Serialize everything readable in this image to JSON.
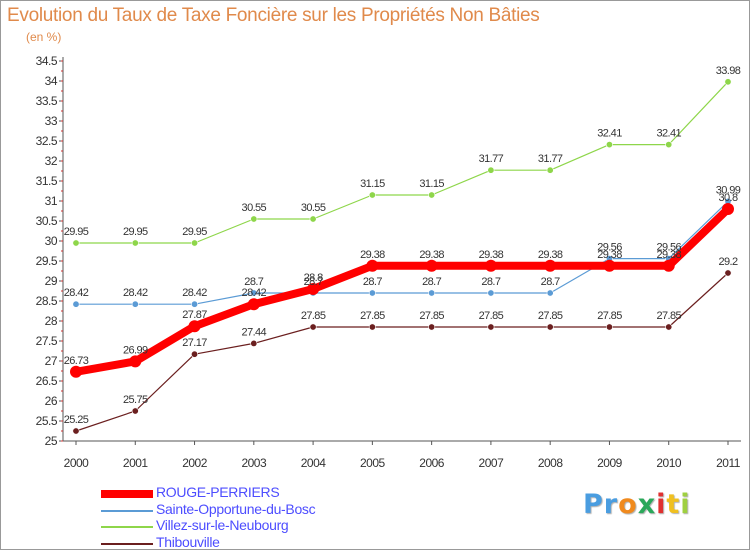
{
  "title": "Evolution du Taux de Taxe Foncière sur les Propriétés Non Bâties",
  "unit_label": "(en %)",
  "logo": {
    "letters": [
      "P",
      "r",
      "o",
      "x",
      "i",
      "t",
      "i"
    ],
    "colors": [
      "#4a9de0",
      "#4a9de0",
      "#f08a1e",
      "#2aa85a",
      "#e03030",
      "#f0c020",
      "#9fd040"
    ]
  },
  "chart_data": {
    "type": "line",
    "title": "Evolution du Taux de Taxe Foncière sur les Propriétés Non Bâties",
    "ylabel": "(en %)",
    "xlabel": "",
    "x": [
      "2000",
      "2001",
      "2002",
      "2003",
      "2004",
      "2005",
      "2006",
      "2007",
      "2008",
      "2009",
      "2010",
      "2011"
    ],
    "ylim": [
      25,
      34.5
    ],
    "yticks": [
      "25",
      "25.5",
      "26",
      "26.5",
      "27",
      "27.5",
      "28",
      "28.5",
      "29",
      "29.5",
      "30",
      "30.5",
      "31",
      "31.5",
      "32",
      "32.5",
      "33",
      "33.5",
      "34",
      "34.5"
    ],
    "grid": false,
    "legend": "bottom-left",
    "series": [
      {
        "name": "ROUGE-PERRIERS",
        "color": "#ff0000",
        "values": [
          26.73,
          26.99,
          27.87,
          28.42,
          28.8,
          29.38,
          29.38,
          29.38,
          29.38,
          29.38,
          29.38,
          30.8
        ],
        "labels": [
          "26.73",
          "26.99",
          "27.87",
          "28.42",
          "28.8",
          "29.38",
          "29.38",
          "29.38",
          "29.38",
          "29.38",
          "29.38",
          "30.8"
        ]
      },
      {
        "name": "Sainte-Opportune-du-Bosc",
        "color": "#5b9bd5",
        "values": [
          28.42,
          28.42,
          28.42,
          28.7,
          28.7,
          28.7,
          28.7,
          28.7,
          28.7,
          29.56,
          29.56,
          30.99
        ],
        "labels": [
          "28.42",
          "28.42",
          "28.42",
          "28.7",
          "28.7",
          "28.7",
          "28.7",
          "28.7",
          "28.7",
          "29.56",
          "29.56",
          "30.99"
        ]
      },
      {
        "name": "Villez-sur-le-Neubourg",
        "color": "#8ed64a",
        "values": [
          29.95,
          29.95,
          29.95,
          30.55,
          30.55,
          31.15,
          31.15,
          31.77,
          31.77,
          32.41,
          32.41,
          33.98
        ],
        "labels": [
          "29.95",
          "29.95",
          "29.95",
          "30.55",
          "30.55",
          "31.15",
          "31.15",
          "31.77",
          "31.77",
          "32.41",
          "32.41",
          "33.98"
        ]
      },
      {
        "name": "Thibouville",
        "color": "#6b1f1f",
        "values": [
          25.25,
          25.75,
          27.17,
          27.44,
          27.85,
          27.85,
          27.85,
          27.85,
          27.85,
          27.85,
          27.85,
          29.2
        ],
        "labels": [
          "25.25",
          "25.75",
          "27.17",
          "27.44",
          "27.85",
          "27.85",
          "27.85",
          "27.85",
          "27.85",
          "27.85",
          "27.85",
          "29.2"
        ]
      }
    ]
  }
}
